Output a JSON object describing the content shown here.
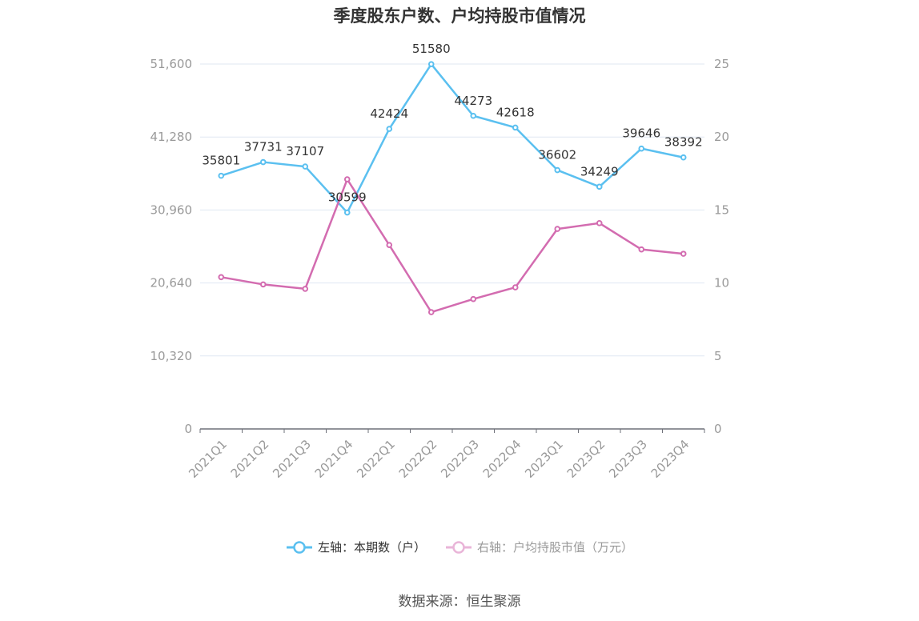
{
  "chart_data": {
    "type": "line",
    "title": "季度股东户数、户均持股市值情况",
    "categories": [
      "2021Q1",
      "2021Q2",
      "2021Q3",
      "2021Q4",
      "2022Q1",
      "2022Q2",
      "2022Q3",
      "2022Q4",
      "2023Q1",
      "2023Q2",
      "2023Q3",
      "2023Q4"
    ],
    "left_axis": {
      "ticks": [
        "0",
        "10,320",
        "20,640",
        "30,960",
        "41,280",
        "51,600"
      ],
      "ylim": [
        0,
        51600
      ]
    },
    "right_axis": {
      "ticks": [
        "0",
        "5",
        "10",
        "15",
        "20",
        "25"
      ],
      "ylim": [
        0,
        25
      ]
    },
    "series": [
      {
        "name": "左轴：本期数（户）",
        "axis": "left",
        "color": "#5bc0f0",
        "values": [
          35801,
          37731,
          37107,
          30599,
          42424,
          51580,
          44273,
          42618,
          36602,
          34249,
          39646,
          38392
        ],
        "labels": [
          "35801",
          "37731",
          "37107",
          "30599",
          "42424",
          "51580",
          "44273",
          "42618",
          "36602",
          "34249",
          "39646",
          "38392"
        ]
      },
      {
        "name": "右轴：户均持股市值（万元）",
        "axis": "right",
        "color": "#d36cb0",
        "values": [
          10.4,
          9.9,
          9.6,
          17.1,
          12.6,
          8.0,
          8.9,
          9.7,
          13.7,
          14.1,
          12.3,
          12.0
        ]
      }
    ],
    "grid": true,
    "legend": "bottom-center"
  },
  "source": "数据来源：恒生聚源"
}
